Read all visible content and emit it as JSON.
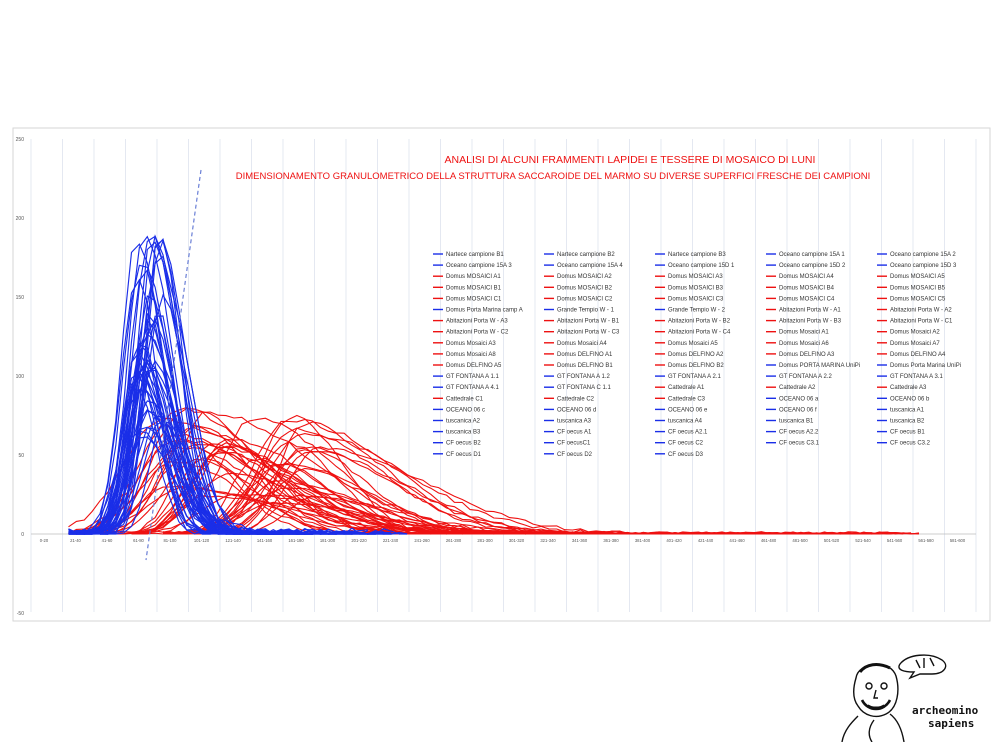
{
  "chart_data": {
    "type": "line",
    "title": "ANALISI DI ALCUNI FRAMMENTI LAPIDEI E TESSERE DI MOSAICO DI LUNI",
    "subtitle": "DIMENSIONAMENTO GRANULOMETRICO DELLA STRUTTURA SACCAROIDE DEL MARMO SU DIVERSE SUPERFICI FRESCHE DEI CAMPIONI",
    "xlabel": "",
    "ylabel": "",
    "ylim": [
      -50,
      250
    ],
    "yticks": [
      -50,
      0,
      50,
      100,
      150,
      200,
      250
    ],
    "categories": [
      "0-20",
      "21-40",
      "41-60",
      "61-80",
      "81-100",
      "101-120",
      "121-140",
      "141-160",
      "161-180",
      "181-200",
      "201-220",
      "221-240",
      "241-260",
      "261-280",
      "281-300",
      "301-320",
      "321-340",
      "341-360",
      "361-380",
      "381-400",
      "401-420",
      "421-440",
      "441-460",
      "461-480",
      "481-500",
      "501-520",
      "521-540",
      "541-560",
      "561-580",
      "581-600"
    ],
    "grid": true,
    "legend_position": "right",
    "colors": {
      "blue": "#1a2ee8",
      "red": "#ee1111",
      "title": "#ee1111",
      "guide": "#6a7fd6"
    },
    "series": [
      {
        "name": "Nartece campione B1",
        "color": "blue"
      },
      {
        "name": "Nartece campione B2",
        "color": "blue"
      },
      {
        "name": "Nartece campione B3",
        "color": "blue"
      },
      {
        "name": "Oceano campione 15A 1",
        "color": "blue"
      },
      {
        "name": "Oceano campione 15A 2",
        "color": "blue"
      },
      {
        "name": "Oceano campione 15A 3",
        "color": "blue"
      },
      {
        "name": "Oceano campione 15A 4",
        "color": "blue"
      },
      {
        "name": "Oceano campione 15D 1",
        "color": "blue"
      },
      {
        "name": "Oceano campione 15D 2",
        "color": "blue"
      },
      {
        "name": "Oceano campione 15D 3",
        "color": "blue"
      },
      {
        "name": "Domus MOSAICI A1",
        "color": "red"
      },
      {
        "name": "Domus MOSAICI A2",
        "color": "red"
      },
      {
        "name": "Domus MOSAICI A3",
        "color": "red"
      },
      {
        "name": "Domus MOSAICI A4",
        "color": "red"
      },
      {
        "name": "Domus MOSAICI A5",
        "color": "red"
      },
      {
        "name": "Domus MOSAICI B1",
        "color": "red"
      },
      {
        "name": "Domus MOSAICI B2",
        "color": "red"
      },
      {
        "name": "Domus MOSAICI B3",
        "color": "red"
      },
      {
        "name": "Domus MOSAICI B4",
        "color": "red"
      },
      {
        "name": "Domus MOSAICI B5",
        "color": "red"
      },
      {
        "name": "Domus MOSAICI C1",
        "color": "red"
      },
      {
        "name": "Domus MOSAICI C2",
        "color": "red"
      },
      {
        "name": "Domus MOSAICI C3",
        "color": "red"
      },
      {
        "name": "Domus MOSAICI C4",
        "color": "red"
      },
      {
        "name": "Domus MOSAICI C5",
        "color": "red"
      },
      {
        "name": "Domus Porta Marina camp A",
        "color": "blue"
      },
      {
        "name": "Grande Tempio W - 1",
        "color": "blue"
      },
      {
        "name": "Grande Tempio W - 2",
        "color": "blue"
      },
      {
        "name": "Abitazioni Porta W - A1",
        "color": "red"
      },
      {
        "name": "Abitazioni Porta W - A2",
        "color": "red"
      },
      {
        "name": "Abitazioni Porta W - A3",
        "color": "red"
      },
      {
        "name": "Abitazioni Porta W - B1",
        "color": "red"
      },
      {
        "name": "Abitazioni Porta W - B2",
        "color": "red"
      },
      {
        "name": "Abitazioni Porta W - B3",
        "color": "red"
      },
      {
        "name": "Abitazioni Porta W - C1",
        "color": "red"
      },
      {
        "name": "Abitazioni Porta W - C2",
        "color": "red"
      },
      {
        "name": "Abitazioni Porta W - C3",
        "color": "red"
      },
      {
        "name": "Abitazioni Porta W - C4",
        "color": "red"
      },
      {
        "name": "Domus Mosaici A1",
        "color": "red"
      },
      {
        "name": "Domus Mosaici A2",
        "color": "red"
      },
      {
        "name": "Domus Mosaici A3",
        "color": "red"
      },
      {
        "name": "Domus Mosaici A4",
        "color": "red"
      },
      {
        "name": "Domus Mosaici A5",
        "color": "red"
      },
      {
        "name": "Domus Mosaici A6",
        "color": "red"
      },
      {
        "name": "Domus Mosaici A7",
        "color": "red"
      },
      {
        "name": "Domus Mosaici A8",
        "color": "red"
      },
      {
        "name": "Domus DELFINO A1",
        "color": "red"
      },
      {
        "name": "Domus DELFINO A2",
        "color": "red"
      },
      {
        "name": "Domus DELFINO A3",
        "color": "red"
      },
      {
        "name": "Domus DELFINO A4",
        "color": "red"
      },
      {
        "name": "Domus DELFINO A5",
        "color": "red"
      },
      {
        "name": "Domus DELFINO B1",
        "color": "red"
      },
      {
        "name": "Domus DELFINO B2",
        "color": "red"
      },
      {
        "name": "Domus PORTA MARINA UniPi",
        "color": "blue"
      },
      {
        "name": "Domus Porta Marina UniPi",
        "color": "blue"
      },
      {
        "name": "GT  FONTANA  A 1.1",
        "color": "blue"
      },
      {
        "name": "GT  FONTANA  A 1.2",
        "color": "blue"
      },
      {
        "name": "GT  FONTANA  A 2.1",
        "color": "blue"
      },
      {
        "name": "GT  FONTANA  A 2.2",
        "color": "blue"
      },
      {
        "name": "GT  FONTANA  A 3.1",
        "color": "blue"
      },
      {
        "name": "GT  FONTANA  A 4.1",
        "color": "blue"
      },
      {
        "name": "GT  FONTANA  C 1.1",
        "color": "blue"
      },
      {
        "name": "Cattedrale A1",
        "color": "red"
      },
      {
        "name": "Cattedrale A2",
        "color": "red"
      },
      {
        "name": "Cattedrale A3",
        "color": "red"
      },
      {
        "name": "Cattedrale C1",
        "color": "red"
      },
      {
        "name": "Cattedrale C2",
        "color": "red"
      },
      {
        "name": "Cattedrale C3",
        "color": "red"
      },
      {
        "name": "OCEANO 06 a",
        "color": "blue"
      },
      {
        "name": "OCEANO 06 b",
        "color": "blue"
      },
      {
        "name": "OCEANO 06 c",
        "color": "blue"
      },
      {
        "name": "OCEANO 06 d",
        "color": "blue"
      },
      {
        "name": "OCEANO 06 e",
        "color": "blue"
      },
      {
        "name": "OCEANO 06 f",
        "color": "blue"
      },
      {
        "name": "tuscanica A1",
        "color": "blue"
      },
      {
        "name": "tuscanica A2",
        "color": "blue"
      },
      {
        "name": "tuscanica A3",
        "color": "blue"
      },
      {
        "name": "tuscanica A4",
        "color": "blue"
      },
      {
        "name": "tuscanica B1",
        "color": "blue"
      },
      {
        "name": "tuscanica B2",
        "color": "blue"
      },
      {
        "name": "tuscanica B3",
        "color": "blue"
      },
      {
        "name": "CF oecus A1",
        "color": "blue"
      },
      {
        "name": "CF oecus A2.1",
        "color": "blue"
      },
      {
        "name": "CF oecus A2.2",
        "color": "blue"
      },
      {
        "name": "CF oecus B1",
        "color": "blue"
      },
      {
        "name": "CF oecus B2",
        "color": "blue"
      },
      {
        "name": "CF oecusC1",
        "color": "blue"
      },
      {
        "name": "CF oecus C2",
        "color": "blue"
      },
      {
        "name": "CF oecus C3.1",
        "color": "blue"
      },
      {
        "name": "CF oecus C3.2",
        "color": "blue"
      },
      {
        "name": "CF oecus  D1",
        "color": "blue"
      },
      {
        "name": "CF oecus  D2",
        "color": "blue"
      },
      {
        "name": "CF oecus  D3",
        "color": "blue"
      }
    ]
  },
  "logo": {
    "line1": "archeomino",
    "line2": "sapiens"
  }
}
